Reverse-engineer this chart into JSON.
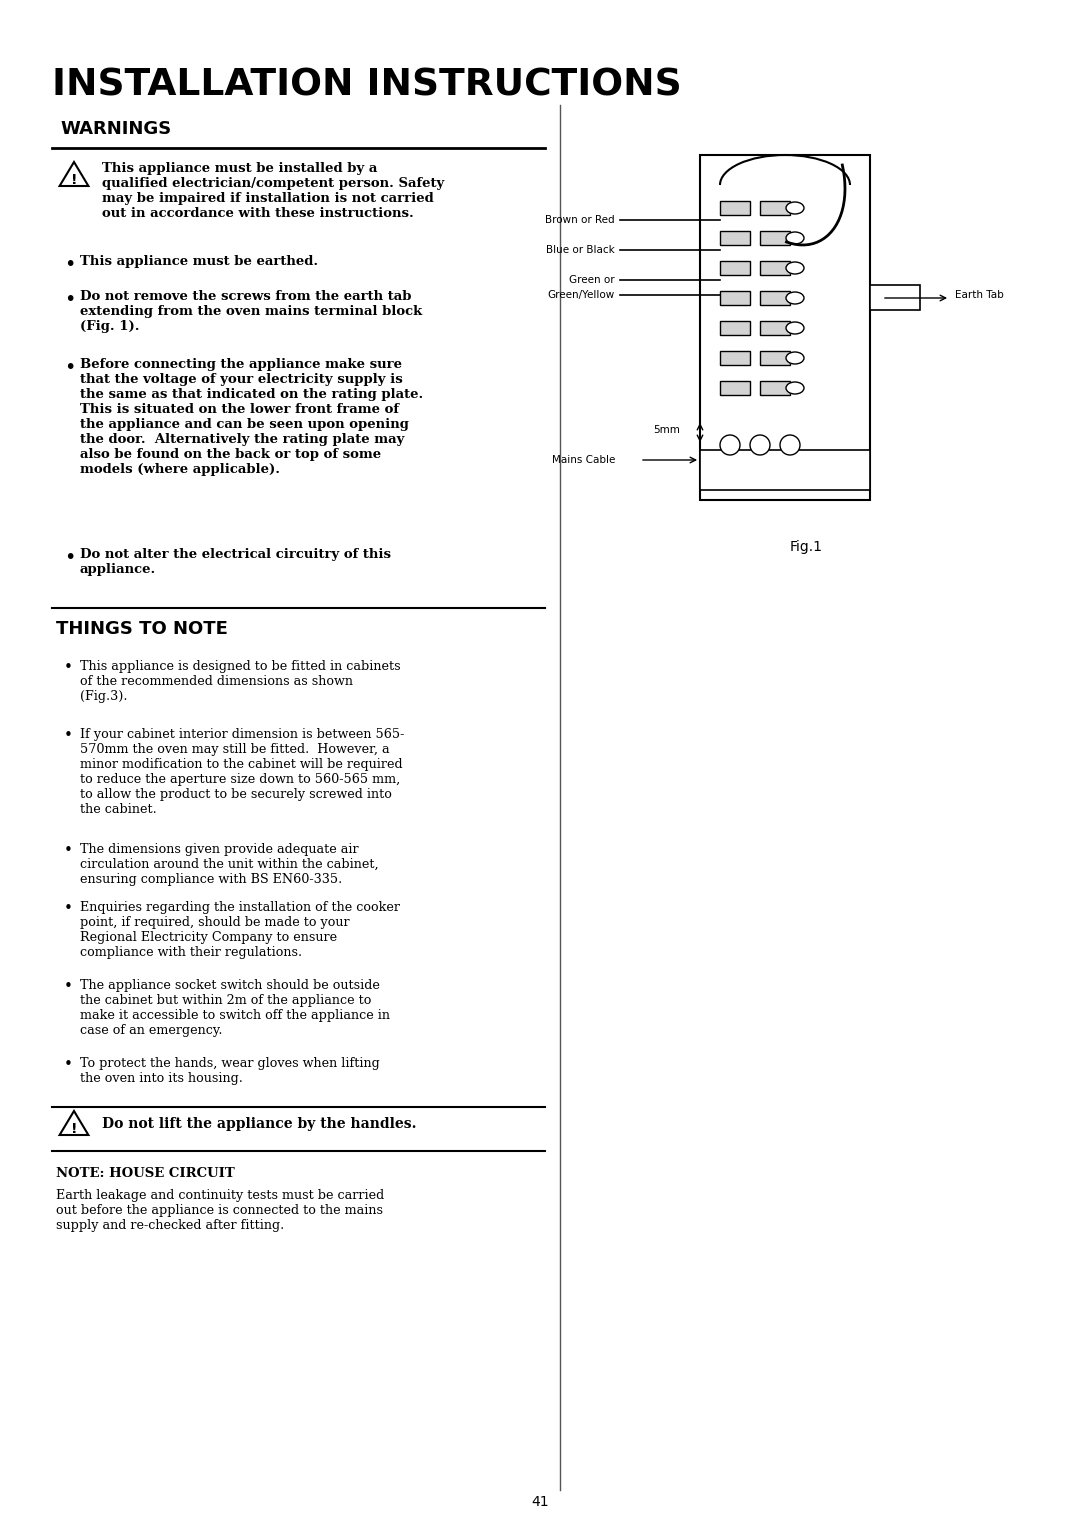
{
  "bg_color": "#ffffff",
  "text_color": "#000000",
  "page_number": "41",
  "title": "INSTALLATION INSTRUCTIONS",
  "warnings_heading": "WARNINGS",
  "warnings_items": [
    "This appliance must be installed by a\nqualified electrician/competent person. Safety\nmay be impaired if installation is not carried\nout in accordance with these instructions.",
    "This appliance must be earthed.",
    "Do not remove the screws from the earth tab\nextending from the oven mains terminal block\n(Fig. 1).",
    "Before connecting the appliance make sure\nthat the voltage of your electricity supply is\nthe same as that indicated on the rating plate.\nThis is situated on the lower front frame of\nthe appliance and can be seen upon opening\nthe door.  Alternatively the rating plate may\nalso be found on the back or top of some\nmodels (where applicable).",
    "Do not alter the electrical circuitry of this\nappliance."
  ],
  "things_heading": "THINGS TO NOTE",
  "things_items": [
    "This appliance is designed to be fitted in cabinets\nof the recommended dimensions as shown\n(Fig.3).",
    "If your cabinet interior dimension is between 565-\n570mm the oven may still be fitted.  However, a\nminor modification to the cabinet will be required\nto reduce the aperture size down to 560-565 mm,\nto allow the product to be securely screwed into\nthe cabinet.",
    "The dimensions given provide adequate air\ncirculation around the unit within the cabinet,\nensuring compliance with BS EN60-335.",
    "Enquiries regarding the installation of the cooker\npoint, if required, should be made to your\nRegional Electricity Company to ensure\ncompliance with their regulations.",
    "The appliance socket switch should be outside\nthe cabinet but within 2m of the appliance to\nmake it accessible to switch off the appliance in\ncase of an emergency.",
    "To protect the hands, wear gloves when lifting\nthe oven into its housing."
  ],
  "warning_box_text": "Do not lift the appliance by the handles.",
  "note_house_heading": "NOTE: HOUSE CIRCUIT",
  "note_house_text": "Earth leakage and continuity tests must be carried\nout before the appliance is connected to the mains\nsupply and re-checked after fitting.",
  "fig1_caption": "Fig.1",
  "fig1_labels": {
    "brown_or_red": "Brown or Red",
    "blue_or_black": "Blue or Black",
    "green_or": "Green or",
    "green_yellow": "Green/Yellow",
    "five_mm": "5mm",
    "mains_cable": "Mains Cable",
    "earth_tab": "Earth Tab"
  }
}
